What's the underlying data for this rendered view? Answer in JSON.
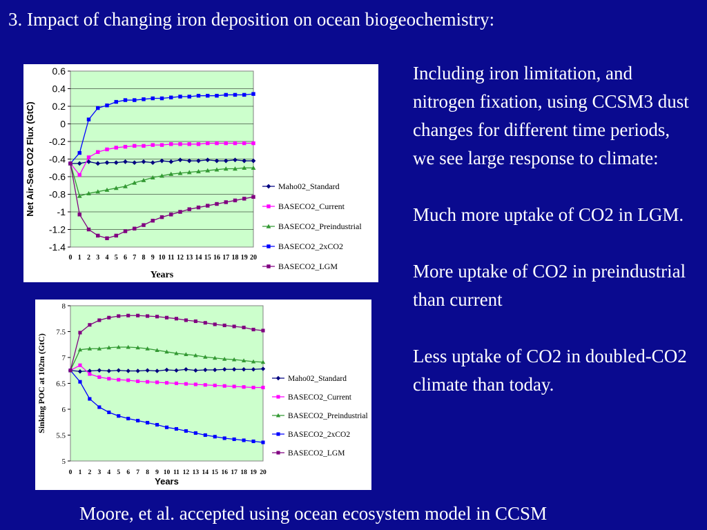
{
  "slide": {
    "title": "3. Impact of changing iron deposition on ocean biogeochemistry:",
    "paragraphs": [
      "Including iron limitation, and nitrogen fixation, using CCSM3 dust changes for different time periods, we see large response to climate:",
      "Much more uptake of CO2 in LGM.",
      "More uptake of CO2 in preindustrial than current",
      "Less uptake of CO2 in doubled-CO2 climate than today."
    ],
    "footer": "Moore, et al. accepted using ocean ecosystem model in CCSM",
    "colors": {
      "background": "#0a0a8f",
      "text": "#ffffff",
      "plot_area": "#ccffcc"
    }
  },
  "chart_data": [
    {
      "type": "line",
      "xlabel": "Years",
      "ylabel": "Net Air-Sea CO2 Flux (GtC)",
      "x": [
        0,
        1,
        2,
        3,
        4,
        5,
        6,
        7,
        8,
        9,
        10,
        11,
        12,
        13,
        14,
        15,
        16,
        17,
        18,
        19,
        20
      ],
      "ylim": [
        -1.4,
        0.6
      ],
      "yticks": [
        "0.6",
        "0.4",
        "0.2",
        "0",
        "-0.2",
        "-0.4",
        "-0.6",
        "-0.8",
        "-1",
        "-1.2",
        "-1.4"
      ],
      "grid": true,
      "legend_position": "right",
      "series": [
        {
          "name": "Maho02_Standard",
          "color": "#000080",
          "marker": "diamond",
          "values": [
            -0.45,
            -0.45,
            -0.43,
            -0.45,
            -0.44,
            -0.44,
            -0.43,
            -0.44,
            -0.43,
            -0.44,
            -0.42,
            -0.43,
            -0.41,
            -0.42,
            -0.42,
            -0.41,
            -0.42,
            -0.42,
            -0.41,
            -0.42,
            -0.42
          ]
        },
        {
          "name": "BASECO2_Current",
          "color": "#ff00ff",
          "marker": "square",
          "values": [
            -0.45,
            -0.58,
            -0.38,
            -0.32,
            -0.29,
            -0.27,
            -0.26,
            -0.25,
            -0.25,
            -0.24,
            -0.24,
            -0.23,
            -0.23,
            -0.23,
            -0.23,
            -0.22,
            -0.22,
            -0.22,
            -0.22,
            -0.22,
            -0.22
          ]
        },
        {
          "name": "BASECO2_Preindustrial",
          "color": "#339933",
          "marker": "triangle",
          "values": [
            -0.45,
            -0.82,
            -0.79,
            -0.77,
            -0.75,
            -0.73,
            -0.71,
            -0.67,
            -0.64,
            -0.61,
            -0.59,
            -0.57,
            -0.56,
            -0.55,
            -0.54,
            -0.53,
            -0.52,
            -0.51,
            -0.51,
            -0.5,
            -0.5
          ]
        },
        {
          "name": "BASECO2_2xCO2",
          "color": "#0000ff",
          "marker": "square",
          "values": [
            -0.45,
            -0.33,
            0.05,
            0.18,
            0.21,
            0.25,
            0.27,
            0.27,
            0.28,
            0.29,
            0.29,
            0.3,
            0.31,
            0.31,
            0.32,
            0.32,
            0.32,
            0.33,
            0.33,
            0.33,
            0.34
          ]
        },
        {
          "name": "BASECO2_LGM",
          "color": "#800080",
          "marker": "square",
          "values": [
            -0.45,
            -1.03,
            -1.2,
            -1.27,
            -1.3,
            -1.27,
            -1.22,
            -1.19,
            -1.15,
            -1.1,
            -1.06,
            -1.03,
            -1.0,
            -0.97,
            -0.95,
            -0.93,
            -0.91,
            -0.89,
            -0.87,
            -0.85,
            -0.83
          ]
        }
      ]
    },
    {
      "type": "line",
      "xlabel": "Years",
      "ylabel": "Sinking POC at 102m (GtC)",
      "x": [
        0,
        1,
        2,
        3,
        4,
        5,
        6,
        7,
        8,
        9,
        10,
        11,
        12,
        13,
        14,
        15,
        16,
        17,
        18,
        19,
        20
      ],
      "ylim": [
        5,
        8
      ],
      "yticks": [
        "8",
        "7.5",
        "7",
        "6.5",
        "6",
        "5.5",
        "5"
      ],
      "grid": false,
      "legend_position": "right",
      "series": [
        {
          "name": "Maho02_Standard",
          "color": "#000080",
          "marker": "diamond",
          "values": [
            6.75,
            6.73,
            6.74,
            6.75,
            6.74,
            6.75,
            6.74,
            6.74,
            6.75,
            6.74,
            6.76,
            6.75,
            6.77,
            6.75,
            6.76,
            6.76,
            6.77,
            6.77,
            6.77,
            6.77,
            6.78
          ]
        },
        {
          "name": "BASECO2_Current",
          "color": "#ff00ff",
          "marker": "square",
          "values": [
            6.75,
            6.85,
            6.68,
            6.62,
            6.59,
            6.57,
            6.56,
            6.54,
            6.53,
            6.52,
            6.51,
            6.5,
            6.49,
            6.48,
            6.47,
            6.46,
            6.45,
            6.44,
            6.43,
            6.42,
            6.42
          ]
        },
        {
          "name": "BASECO2_Preindustrial",
          "color": "#339933",
          "marker": "triangle",
          "values": [
            6.75,
            7.15,
            7.17,
            7.17,
            7.19,
            7.2,
            7.2,
            7.19,
            7.17,
            7.14,
            7.11,
            7.08,
            7.06,
            7.04,
            7.01,
            6.99,
            6.97,
            6.96,
            6.94,
            6.92,
            6.91
          ]
        },
        {
          "name": "BASECO2_2xCO2",
          "color": "#0000ff",
          "marker": "square",
          "values": [
            6.75,
            6.53,
            6.2,
            6.04,
            5.94,
            5.87,
            5.82,
            5.78,
            5.74,
            5.7,
            5.65,
            5.62,
            5.58,
            5.54,
            5.5,
            5.47,
            5.44,
            5.42,
            5.4,
            5.38,
            5.36
          ]
        },
        {
          "name": "BASECO2_LGM",
          "color": "#800080",
          "marker": "square",
          "values": [
            6.75,
            7.48,
            7.63,
            7.72,
            7.77,
            7.8,
            7.81,
            7.81,
            7.8,
            7.79,
            7.77,
            7.75,
            7.72,
            7.7,
            7.67,
            7.64,
            7.62,
            7.6,
            7.58,
            7.54,
            7.52
          ]
        }
      ]
    }
  ]
}
